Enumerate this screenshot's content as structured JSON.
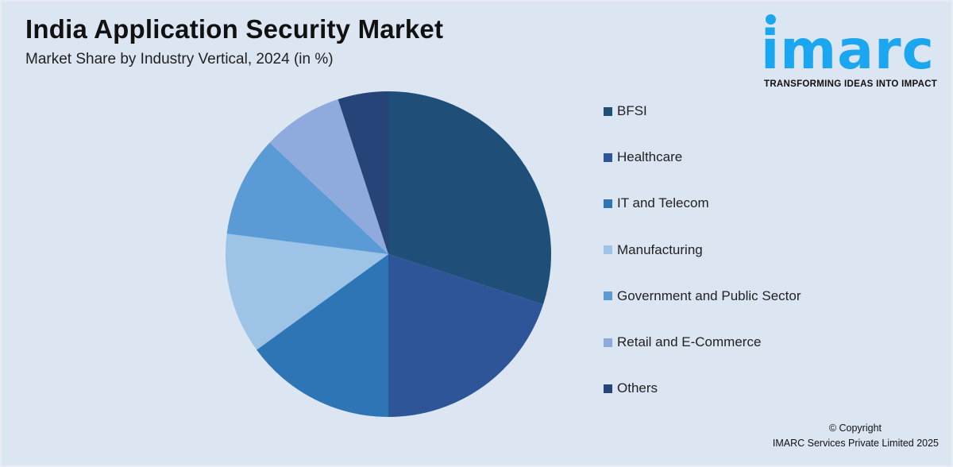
{
  "title": "India Application Security Market",
  "subtitle": "Market Share by Industry Vertical, 2024 (in %)",
  "logo": {
    "word": "imarc",
    "tagline": "TRANSFORMING IDEAS INTO IMPACT"
  },
  "copyright": {
    "line1": "© Copyright",
    "line2": "IMARC Services Private Limited 2025"
  },
  "chart_data": {
    "type": "pie",
    "title": "India Application Security Market",
    "subtitle": "Market Share by Industry Vertical, 2024 (in %)",
    "legend_position": "right",
    "start_angle_deg": 0,
    "direction": "clockwise",
    "slices": [
      {
        "label": "BFSI",
        "value": 30,
        "color": "#1f4e79"
      },
      {
        "label": "Healthcare",
        "value": 20,
        "color": "#2e5597"
      },
      {
        "label": "IT and Telecom",
        "value": 15,
        "color": "#2e75b6"
      },
      {
        "label": "Manufacturing",
        "value": 12,
        "color": "#9dc3e6"
      },
      {
        "label": "Government and Public Sector",
        "value": 10,
        "color": "#5b9bd5"
      },
      {
        "label": "Retail and E-Commerce",
        "value": 8,
        "color": "#8faadc"
      },
      {
        "label": "Others",
        "value": 5,
        "color": "#264478"
      }
    ]
  }
}
